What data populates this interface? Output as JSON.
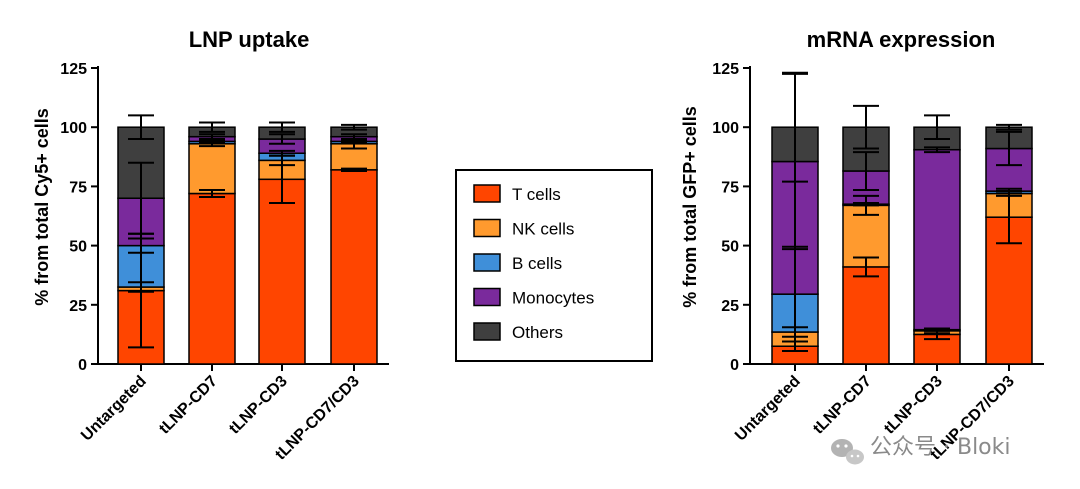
{
  "colors": {
    "T cells": "#ff4500",
    "NK cells": "#ff9a2e",
    "B cells": "#3f8fd9",
    "Monocytes": "#7a2a9c",
    "Others": "#3f3f3f"
  },
  "legend": {
    "items": [
      "T cells",
      "NK cells",
      "B cells",
      "Monocytes",
      "Others"
    ]
  },
  "watermark": {
    "text": "公众号 · Bloki",
    "icon": "wechat-icon"
  },
  "chart_data": [
    {
      "type": "bar",
      "stacked": true,
      "title": "LNP uptake",
      "xlabel": "",
      "ylabel": "% from total Cy5+ cells",
      "ylim": [
        0,
        125
      ],
      "yticks": [
        "0",
        "25",
        "50",
        "75",
        "100",
        "125"
      ],
      "categories": [
        "Untargeted",
        "tLNP-CD7",
        "tLNP-CD3",
        "tLNP-CD7/CD3"
      ],
      "series": [
        {
          "name": "T cells",
          "values": [
            31,
            72,
            78,
            82
          ],
          "errors": [
            24,
            1.5,
            10,
            0.5
          ]
        },
        {
          "name": "NK cells",
          "values": [
            1.5,
            21,
            8,
            11
          ],
          "errors": [
            2,
            1,
            2,
            2
          ]
        },
        {
          "name": "B cells",
          "values": [
            17.5,
            1,
            3,
            1
          ],
          "errors": [
            3,
            0.5,
            1,
            0.5
          ]
        },
        {
          "name": "Monocytes",
          "values": [
            20,
            2,
            6,
            2
          ],
          "errors": [
            15,
            1,
            2,
            1
          ]
        },
        {
          "name": "Others",
          "values": [
            30,
            4,
            5,
            4
          ],
          "errors": [
            5,
            2,
            2,
            1
          ]
        }
      ]
    },
    {
      "type": "bar",
      "stacked": true,
      "title": "mRNA expression",
      "xlabel": "",
      "ylabel": "% from total GFP+ cells",
      "ylim": [
        0,
        125
      ],
      "yticks": [
        "0",
        "25",
        "50",
        "75",
        "100",
        "125"
      ],
      "categories": [
        "Untargeted",
        "tLNP-CD7",
        "tLNP-CD3",
        "tLNP-CD7/CD3"
      ],
      "series": [
        {
          "name": "T cells",
          "values": [
            7.5,
            41,
            12.5,
            62
          ],
          "errors": [
            2,
            4,
            2,
            11
          ]
        },
        {
          "name": "NK cells",
          "values": [
            6,
            26,
            1.5,
            10
          ],
          "errors": [
            2,
            4,
            1,
            1
          ]
        },
        {
          "name": "B cells",
          "values": [
            16,
            0.5,
            0.5,
            1
          ],
          "errors": [
            20,
            0.5,
            0.5,
            1
          ]
        },
        {
          "name": "Monocytes",
          "values": [
            56,
            14,
            76,
            18
          ],
          "errors": [
            37,
            8,
            1,
            7
          ]
        },
        {
          "name": "Others",
          "values": [
            14.5,
            18.5,
            9.5,
            9
          ],
          "errors": [
            23,
            9,
            5,
            1
          ]
        }
      ]
    }
  ]
}
